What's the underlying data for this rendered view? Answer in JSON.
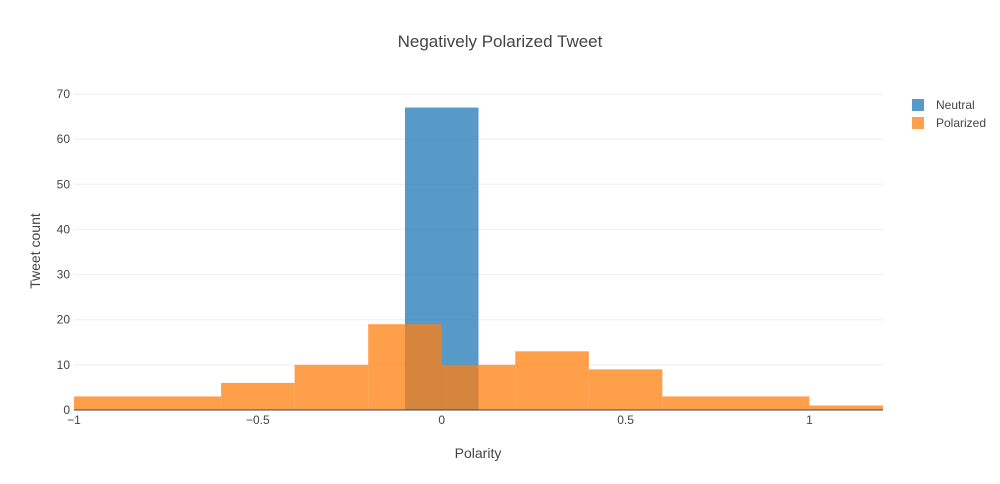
{
  "chart_data": {
    "type": "bar",
    "title": "Negatively Polarized Tweet",
    "xlabel": "Polarity",
    "ylabel": "Tweet count",
    "xlim": [
      -1,
      1.2
    ],
    "ylim": [
      0,
      70
    ],
    "x_ticks": [
      -1,
      -0.5,
      0,
      0.5,
      1
    ],
    "x_tick_labels": [
      "−1",
      "−0.5",
      "0",
      "0.5",
      "1"
    ],
    "y_ticks": [
      0,
      10,
      20,
      30,
      40,
      50,
      60,
      70
    ],
    "y_tick_labels": [
      "0",
      "10",
      "20",
      "30",
      "40",
      "50",
      "60",
      "70"
    ],
    "grid": true,
    "legend_position": "top-right",
    "barmode": "overlay",
    "series": [
      {
        "name": "Neutral",
        "color": "#1f77b4",
        "opacity": 0.75,
        "bins": [
          {
            "start": -0.1,
            "end": 0.1,
            "count": 67
          }
        ]
      },
      {
        "name": "Polarized",
        "color": "#ff7f0e",
        "opacity": 0.75,
        "bins": [
          {
            "start": -1.0,
            "end": -0.6,
            "count": 3
          },
          {
            "start": -0.6,
            "end": -0.4,
            "count": 6
          },
          {
            "start": -0.4,
            "end": -0.2,
            "count": 10
          },
          {
            "start": -0.2,
            "end": 0.0,
            "count": 19
          },
          {
            "start": 0.0,
            "end": 0.2,
            "count": 10
          },
          {
            "start": 0.2,
            "end": 0.4,
            "count": 13
          },
          {
            "start": 0.4,
            "end": 0.6,
            "count": 9
          },
          {
            "start": 0.6,
            "end": 1.0,
            "count": 3
          },
          {
            "start": 1.0,
            "end": 1.2,
            "count": 1
          }
        ]
      }
    ]
  }
}
